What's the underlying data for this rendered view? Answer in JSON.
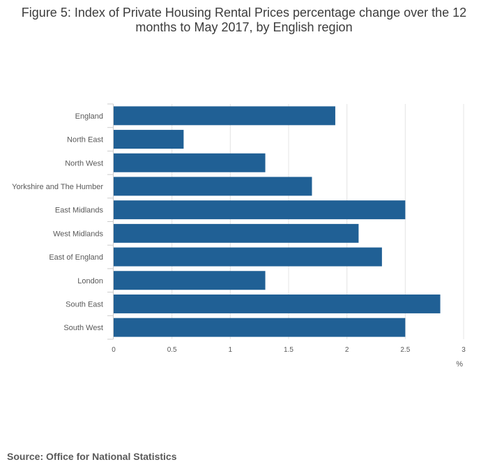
{
  "chart_data": {
    "type": "bar",
    "orientation": "horizontal",
    "title": "Figure 5: Index of Private Housing Rental Prices percentage change over the 12 months to May 2017, by English region",
    "categories": [
      "England",
      "North East",
      "North West",
      "Yorkshire and The Humber",
      "East Midlands",
      "West Midlands",
      "East of England",
      "London",
      "South East",
      "South West"
    ],
    "values": [
      1.9,
      0.6,
      1.3,
      1.7,
      2.5,
      2.1,
      2.3,
      1.3,
      2.8,
      2.5
    ],
    "xlabel": "%",
    "ylabel": "",
    "xlim": [
      0,
      3
    ],
    "x_ticks": [
      0,
      0.5,
      1,
      1.5,
      2,
      2.5,
      3
    ],
    "x_tick_labels": [
      "0",
      "0.5",
      "1",
      "1.5",
      "2",
      "2.5",
      "3"
    ],
    "grid": true,
    "bar_color": "#206095"
  },
  "source": "Source: Office for National Statistics"
}
